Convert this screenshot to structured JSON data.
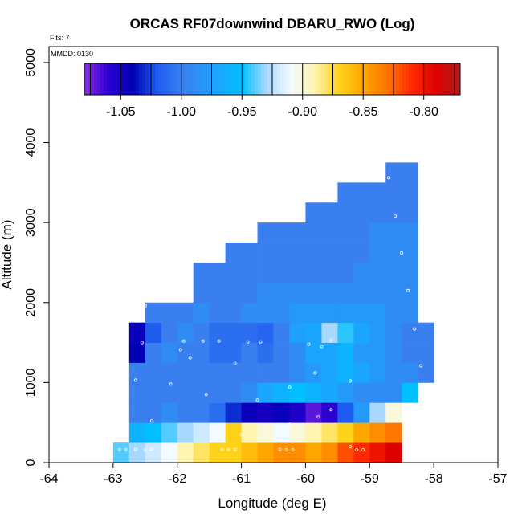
{
  "chart_data": {
    "type": "heatmap",
    "title": "ORCAS RF07downwind DBARU_RWO (Log)",
    "xlabel": "Longitude (deg E)",
    "ylabel": "Altitude (m)",
    "xlim": [
      -64,
      -57
    ],
    "ylim": [
      0,
      5200
    ],
    "xticks": [
      -64,
      -63,
      -62,
      -61,
      -60,
      -59,
      -58,
      -57
    ],
    "yticks": [
      0,
      1000,
      2000,
      3000,
      4000,
      5000
    ],
    "annotations": {
      "flts": "Flts: 7",
      "mmdd": "MMDD: 0130"
    },
    "colorbar": {
      "min": -1.08,
      "max": -0.77,
      "ticks": [
        -1.05,
        -1.0,
        -0.95,
        -0.9,
        -0.85,
        -0.8
      ],
      "tick_labels": [
        "-1.05",
        "-1.00",
        "-0.95",
        "-0.90",
        "-0.85",
        "-0.80"
      ],
      "stops": [
        [
          -1.08,
          "#8a2be2"
        ],
        [
          -1.06,
          "#2a00d0"
        ],
        [
          -1.04,
          "#0000b4"
        ],
        [
          -1.02,
          "#1e5cf0"
        ],
        [
          -1.0,
          "#3a7ff0"
        ],
        [
          -0.97,
          "#1aa6ff"
        ],
        [
          -0.95,
          "#00bfff"
        ],
        [
          -0.93,
          "#a9d8ff"
        ],
        [
          -0.91,
          "#f2fbff"
        ],
        [
          -0.89,
          "#fff4b0"
        ],
        [
          -0.87,
          "#ffd21a"
        ],
        [
          -0.85,
          "#ffa500"
        ],
        [
          -0.83,
          "#ff7500"
        ],
        [
          -0.81,
          "#ff2a00"
        ],
        [
          -0.79,
          "#dd0000"
        ],
        [
          -0.77,
          "#aa1f1f"
        ]
      ]
    },
    "cell": {
      "dlon": 0.25,
      "dalt": 250
    },
    "rows": [
      {
        "alt": 125,
        "lon_start": -63.0,
        "values": [
          -0.94,
          -0.93,
          -0.92,
          -0.91,
          -0.89,
          -0.88,
          -0.87,
          -0.87,
          -0.86,
          -0.85,
          -0.84,
          -0.84,
          -0.85,
          -0.84,
          -0.82,
          -0.81,
          -0.8,
          -0.79
        ]
      },
      {
        "alt": 375,
        "lon_start": -62.75,
        "values": [
          -0.96,
          -0.95,
          -0.94,
          -0.93,
          -0.92,
          -0.91,
          -0.87,
          -0.89,
          -0.9,
          -0.91,
          -0.9,
          -0.89,
          -0.88,
          -0.87,
          -0.85,
          -0.84,
          -0.83
        ]
      },
      {
        "alt": 625,
        "lon_start": -62.75,
        "values": [
          -1.0,
          -1.0,
          -0.99,
          -1.0,
          -1.0,
          -1.01,
          -1.03,
          -1.045,
          -1.05,
          -1.045,
          -1.055,
          -1.07,
          -1.06,
          -1.02,
          -0.98,
          -0.93,
          -0.9
        ]
      },
      {
        "alt": 875,
        "lon_start": -62.75,
        "values": [
          -1.0,
          -1.0,
          -1.0,
          -1.0,
          -1.0,
          -1.0,
          -1.0,
          -0.99,
          -0.97,
          -0.96,
          -0.95,
          -0.96,
          -0.97,
          -0.98,
          -0.99,
          -0.99,
          -0.99,
          -0.95
        ]
      },
      {
        "alt": 1125,
        "lon_start": -62.75,
        "values": [
          -1.0,
          -1.0,
          -1.0,
          -1.0,
          -1.0,
          -1.0,
          -1.0,
          -1.0,
          -1.0,
          -1.0,
          -0.99,
          -0.98,
          -0.97,
          -0.96,
          -0.97,
          -0.98,
          -0.99,
          -0.99,
          -1.0
        ]
      },
      {
        "alt": 1375,
        "lon_start": -62.75,
        "values": [
          -1.04,
          -1.0,
          -0.99,
          -1.0,
          -1.0,
          -1.01,
          -1.01,
          -1.0,
          -1.01,
          -1.0,
          -0.99,
          -0.97,
          -0.97,
          -0.96,
          -0.98,
          -0.98,
          -0.99,
          -1.0,
          -1.0
        ]
      },
      {
        "alt": 1625,
        "lon_start": -62.75,
        "values": [
          -1.045,
          -1.02,
          -1.0,
          -0.99,
          -1.0,
          -1.01,
          -1.01,
          -1.01,
          -1.015,
          -1.0,
          -0.975,
          -0.97,
          -0.93,
          -0.945,
          -0.97,
          -0.98,
          -0.99,
          -1.0,
          -1.0
        ]
      },
      {
        "alt": 1875,
        "lon_start": -62.5,
        "values": [
          -1.0,
          -1.0,
          -1.0,
          -0.99,
          -1.0,
          -1.0,
          -0.99,
          -0.99,
          -0.99,
          -0.98,
          -0.98,
          -0.98,
          -0.98,
          -0.98,
          -0.98,
          -0.99,
          -0.99
        ]
      },
      {
        "alt": 2125,
        "lon_start": -61.75,
        "values": [
          -1.0,
          -1.0,
          -1.0,
          -1.0,
          -0.99,
          -0.99,
          -0.99,
          -0.99,
          -0.99,
          -0.99,
          -0.99,
          -0.99,
          -0.99,
          -0.99
        ]
      },
      {
        "alt": 2375,
        "lon_start": -61.75,
        "values": [
          -1.0,
          -1.0,
          -1.0,
          -1.0,
          -1.0,
          -1.0,
          -1.0,
          -1.0,
          -1.0,
          -1.0,
          -0.99,
          -0.99,
          -0.99,
          -0.99
        ]
      },
      {
        "alt": 2625,
        "lon_start": -61.25,
        "values": [
          -1.0,
          -1.0,
          -1.0,
          -1.0,
          -1.0,
          -1.0,
          -1.0,
          -1.0,
          -1.0,
          -0.99,
          -0.99,
          -0.99
        ]
      },
      {
        "alt": 2875,
        "lon_start": -60.75,
        "values": [
          -1.0,
          -1.0,
          -1.0,
          -1.0,
          -1.0,
          -1.0,
          -1.0,
          -0.99,
          -0.99,
          -0.99
        ]
      },
      {
        "alt": 3125,
        "lon_start": -60.0,
        "values": [
          -1.0,
          -1.0,
          -1.0,
          -1.0,
          -1.0,
          -1.0,
          -1.0
        ]
      },
      {
        "alt": 3375,
        "lon_start": -59.5,
        "values": [
          -1.0,
          -1.0,
          -1.0,
          -1.0,
          -1.0
        ]
      },
      {
        "alt": 3625,
        "lon_start": -58.75,
        "values": [
          -1.0,
          -1.0
        ]
      }
    ],
    "points": [
      [
        -62.9,
        160
      ],
      [
        -62.8,
        160
      ],
      [
        -62.65,
        165
      ],
      [
        -62.5,
        160
      ],
      [
        -62.4,
        170
      ],
      [
        -61.3,
        160
      ],
      [
        -61.2,
        160
      ],
      [
        -61.1,
        165
      ],
      [
        -60.4,
        165
      ],
      [
        -60.3,
        160
      ],
      [
        -60.2,
        160
      ],
      [
        -59.3,
        200
      ],
      [
        -59.2,
        160
      ],
      [
        -59.1,
        160
      ],
      [
        -62.95,
        580
      ],
      [
        -62.4,
        520
      ],
      [
        -61.0,
        350
      ],
      [
        -60.25,
        480
      ],
      [
        -59.8,
        570
      ],
      [
        -62.65,
        1030
      ],
      [
        -62.1,
        980
      ],
      [
        -61.55,
        850
      ],
      [
        -60.75,
        780
      ],
      [
        -60.25,
        940
      ],
      [
        -59.6,
        660
      ],
      [
        -59.85,
        1120
      ],
      [
        -59.3,
        1020
      ],
      [
        -58.2,
        1210
      ],
      [
        -62.55,
        1500
      ],
      [
        -61.95,
        1410
      ],
      [
        -61.8,
        1310
      ],
      [
        -61.9,
        1520
      ],
      [
        -61.6,
        1520
      ],
      [
        -61.35,
        1520
      ],
      [
        -61.1,
        1240
      ],
      [
        -60.9,
        1510
      ],
      [
        -60.7,
        1510
      ],
      [
        -59.95,
        1480
      ],
      [
        -59.75,
        1450
      ],
      [
        -59.6,
        1530
      ],
      [
        -58.3,
        1670
      ],
      [
        -62.5,
        1960
      ],
      [
        -58.4,
        2150
      ],
      [
        -58.5,
        2620
      ],
      [
        -58.6,
        3080
      ],
      [
        -58.7,
        3560
      ]
    ]
  }
}
